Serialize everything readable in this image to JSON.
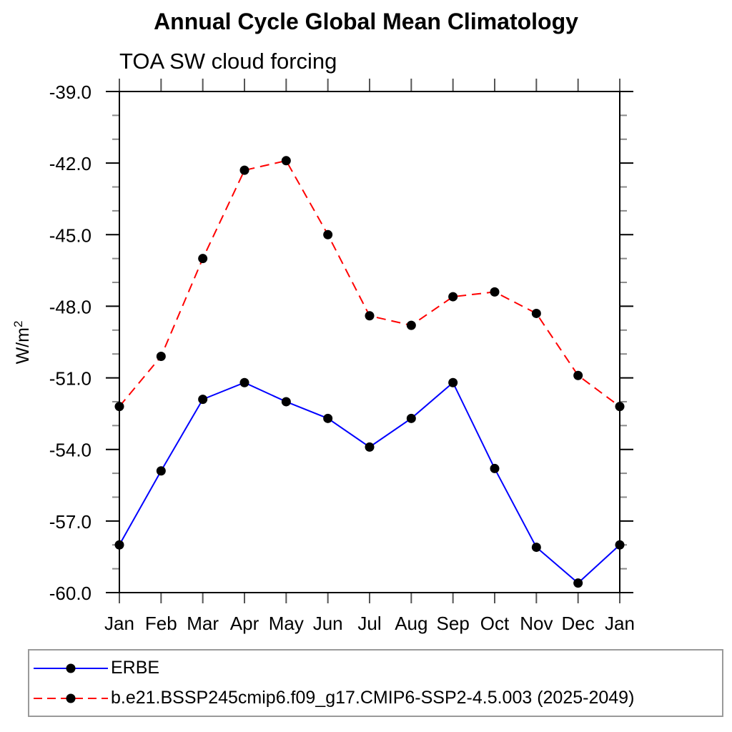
{
  "chart_data": {
    "type": "line",
    "title": "Annual Cycle Global Mean Climatology",
    "subtitle": "TOA SW cloud forcing",
    "ylabel": "W/m²",
    "x_categories": [
      "Jan",
      "Feb",
      "Mar",
      "Apr",
      "May",
      "Jun",
      "Jul",
      "Aug",
      "Sep",
      "Oct",
      "Nov",
      "Dec",
      "Jan"
    ],
    "ylim": [
      -39.0,
      -60.0
    ],
    "y_major_tick_step": 3.0,
    "y_minor_tick_step": 1.0,
    "y_tick_labels": [
      "-39.0",
      "-42.0",
      "-45.0",
      "-48.0",
      "-51.0",
      "-54.0",
      "-57.0",
      "-60.0"
    ],
    "grid": false,
    "legend_position": "bottom",
    "series": [
      {
        "name": "ERBE",
        "color": "#0000ff",
        "line_style": "solid",
        "marker": "filled-circle",
        "marker_color": "#000000",
        "values": [
          -58.0,
          -54.9,
          -51.9,
          -51.2,
          -52.0,
          -52.7,
          -53.9,
          -52.7,
          -51.2,
          -54.8,
          -58.1,
          -59.6,
          -58.0
        ]
      },
      {
        "name": "b.e21.BSSP245cmip6.f09_g17.CMIP6-SSP2-4.5.003 (2025-2049)",
        "color": "#ff0000",
        "line_style": "dashed",
        "marker": "filled-circle",
        "marker_color": "#000000",
        "values": [
          -52.2,
          -50.1,
          -46.0,
          -42.3,
          -41.9,
          -45.0,
          -48.4,
          -48.8,
          -47.6,
          -47.4,
          -48.3,
          -50.9,
          -52.2
        ]
      }
    ]
  }
}
